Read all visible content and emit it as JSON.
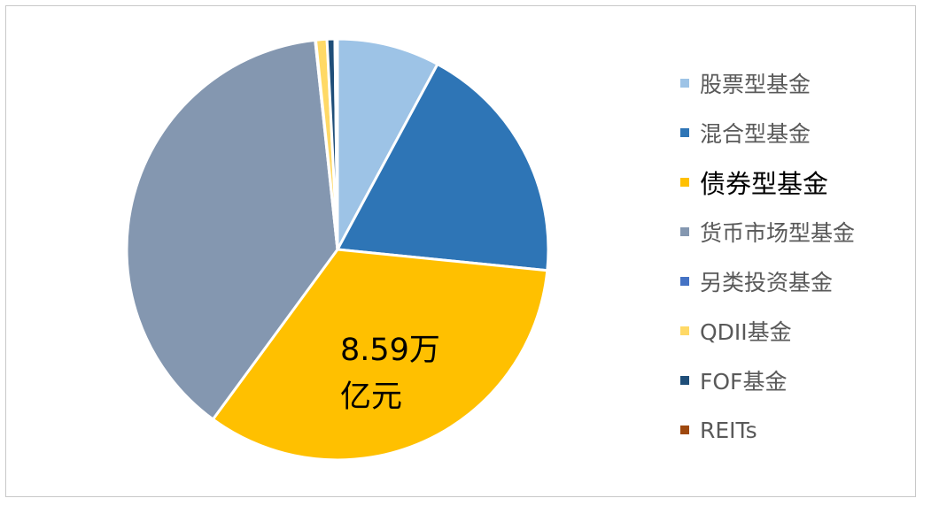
{
  "chart_data": {
    "type": "pie",
    "title": "",
    "categories": [
      "股票型基金",
      "混合型基金",
      "债券型基金",
      "货币市场型基金",
      "另类投资基金",
      "QDII基金",
      "FOF基金",
      "REITs"
    ],
    "values": [
      7.9,
      18.8,
      33.6,
      38.4,
      0.05,
      0.85,
      0.6,
      0.2
    ],
    "unit": "%",
    "colors": [
      "#9DC3E6",
      "#2E75B6",
      "#FFC000",
      "#8497B0",
      "#4472C4",
      "#FFD966",
      "#1F4E79",
      "#9E480E"
    ],
    "slice_border_color": "#ffffff",
    "start_angle_deg": 0,
    "direction": "clockwise",
    "legend_placement": "right",
    "highlighted_category": "债券型基金",
    "annotation": {
      "category": "债券型基金",
      "lines": [
        "8.59万",
        "亿元"
      ]
    }
  }
}
